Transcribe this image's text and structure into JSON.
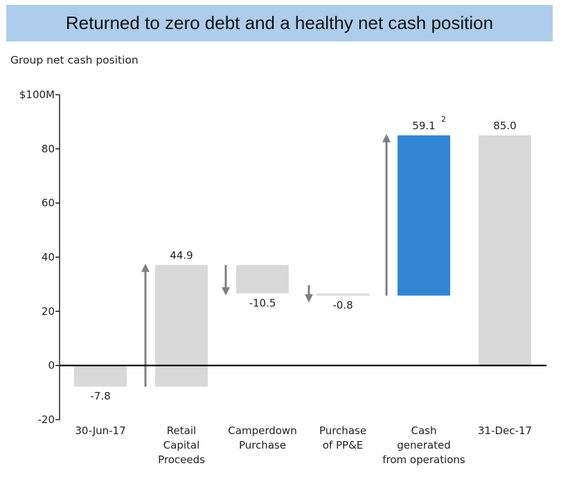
{
  "header": {
    "title": "Returned to zero debt and a healthy net cash position",
    "subtitle": "Group net cash position"
  },
  "colors": {
    "title_bg": "#aecdec",
    "bar_default": "#d9d9d9",
    "bar_highlight": "#3286d1",
    "arrow": "#7f7f7f",
    "axis": "#000000"
  },
  "chart_data": {
    "type": "bar",
    "subtype": "waterfall",
    "title": "Group net cash position",
    "categories": [
      "30-Jun-17",
      "Retail Capital Proceeds",
      "Camperdown Purchase",
      "Purchase of PP&E",
      "Cash generated from operations",
      "31-Dec-17"
    ],
    "category_lines": [
      [
        "30-Jun-17"
      ],
      [
        "Retail",
        "Capital",
        "Proceeds"
      ],
      [
        "Camperdown",
        "Purchase"
      ],
      [
        "Purchase",
        "of PP&E"
      ],
      [
        "Cash",
        "generated",
        "from operations"
      ],
      [
        "31-Dec-17"
      ]
    ],
    "values": [
      -7.8,
      44.9,
      -10.5,
      -0.8,
      59.1,
      85.0
    ],
    "data_labels": [
      "-7.8",
      "44.9",
      "-10.5",
      "-0.8",
      "59.1",
      "85.0"
    ],
    "data_label_superscripts": [
      "",
      "",
      "",
      "",
      "2",
      ""
    ],
    "bars": [
      {
        "start": 0,
        "end": -7.8,
        "kind": "total",
        "highlight": false
      },
      {
        "start": -7.8,
        "end": 37.1,
        "kind": "increase",
        "highlight": false
      },
      {
        "start": 37.1,
        "end": 26.6,
        "kind": "decrease",
        "highlight": false
      },
      {
        "start": 26.6,
        "end": 25.8,
        "kind": "decrease",
        "highlight": false
      },
      {
        "start": 25.8,
        "end": 85.0,
        "kind": "increase",
        "highlight": true
      },
      {
        "start": 0,
        "end": 85.0,
        "kind": "total",
        "highlight": false
      }
    ],
    "y_ticks": [
      -20,
      0,
      20,
      40,
      60,
      80,
      100
    ],
    "y_tick_labels": [
      "-20",
      "0",
      "20",
      "40",
      "60",
      "80",
      "$100M"
    ],
    "ylim": [
      -20,
      100
    ],
    "xlabel": "",
    "ylabel": "",
    "grid": false,
    "legend": "none"
  }
}
